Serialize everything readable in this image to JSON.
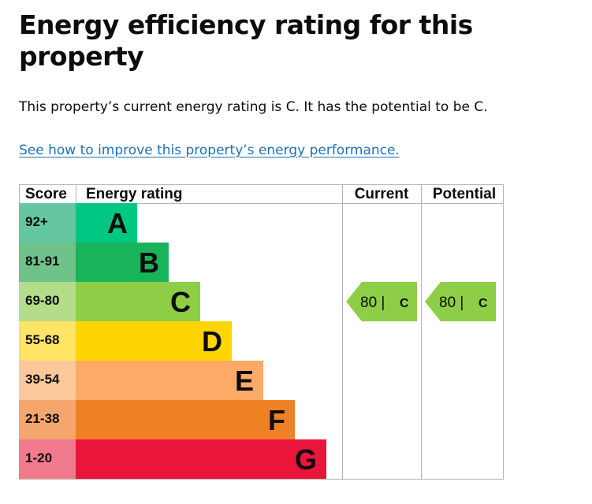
{
  "page": {
    "heading": "Energy efficiency rating for this property",
    "summary": "This property’s current energy rating is C. It has the potential to be C.",
    "improve_link": "See how to improve this property’s energy performance."
  },
  "colors": {
    "link": "#1d70b8",
    "A": "#00c781",
    "B": "#19b459",
    "C": "#8dce46",
    "D": "#ffd500",
    "E": "#fcaa65",
    "F": "#ef8023",
    "G": "#e9153b",
    "score_A": "#64c7a0",
    "score_B": "#6fc28a",
    "score_C": "#b4dd8a",
    "score_D": "#ffe466",
    "score_E": "#fcc89a",
    "score_F": "#f4a66c",
    "score_G": "#f27a8d"
  },
  "chart_data": {
    "type": "table",
    "headers": {
      "score": "Score",
      "rating": "Energy rating",
      "current": "Current",
      "potential": "Potential"
    },
    "bands": [
      {
        "letter": "A",
        "score": "92+"
      },
      {
        "letter": "B",
        "score": "81-91"
      },
      {
        "letter": "C",
        "score": "69-80"
      },
      {
        "letter": "D",
        "score": "55-68"
      },
      {
        "letter": "E",
        "score": "39-54"
      },
      {
        "letter": "F",
        "score": "21-38"
      },
      {
        "letter": "G",
        "score": "1-20"
      }
    ],
    "current": {
      "value": 80,
      "band": "C",
      "label": "80 |",
      "letter": "C"
    },
    "potential": {
      "value": 80,
      "band": "C",
      "label": "80 |",
      "letter": "C"
    }
  }
}
